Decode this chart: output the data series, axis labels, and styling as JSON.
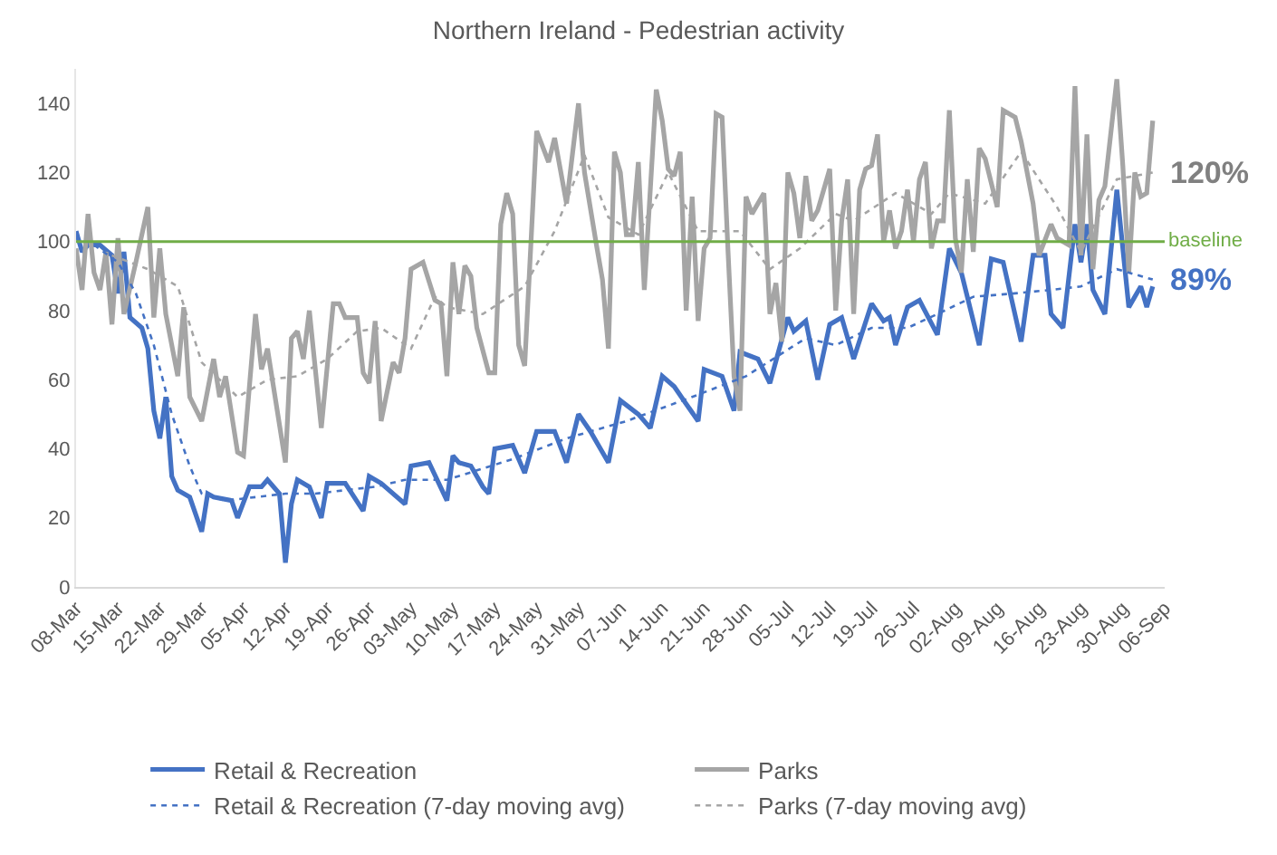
{
  "chart_data": {
    "type": "line",
    "title": "Northern Ireland - Pedestrian activity",
    "ylim": [
      0,
      150
    ],
    "yticks": [
      0,
      20,
      40,
      60,
      80,
      100,
      120,
      140
    ],
    "xlim": [
      "--03-08",
      "--09-06"
    ],
    "xticks": [
      {
        "value": "--03-08",
        "label": "08-Mar"
      },
      {
        "value": "--03-15",
        "label": "15-Mar"
      },
      {
        "value": "--03-22",
        "label": "22-Mar"
      },
      {
        "value": "--03-29",
        "label": "29-Mar"
      },
      {
        "value": "--04-05",
        "label": "05-Apr"
      },
      {
        "value": "--04-12",
        "label": "12-Apr"
      },
      {
        "value": "--04-19",
        "label": "19-Apr"
      },
      {
        "value": "--04-26",
        "label": "26-Apr"
      },
      {
        "value": "--05-03",
        "label": "03-May"
      },
      {
        "value": "--05-10",
        "label": "10-May"
      },
      {
        "value": "--05-17",
        "label": "17-May"
      },
      {
        "value": "--05-24",
        "label": "24-May"
      },
      {
        "value": "--05-31",
        "label": "31-May"
      },
      {
        "value": "--06-07",
        "label": "07-Jun"
      },
      {
        "value": "--06-14",
        "label": "14-Jun"
      },
      {
        "value": "--06-21",
        "label": "21-Jun"
      },
      {
        "value": "--06-28",
        "label": "28-Jun"
      },
      {
        "value": "--07-05",
        "label": "05-Jul"
      },
      {
        "value": "--07-12",
        "label": "12-Jul"
      },
      {
        "value": "--07-19",
        "label": "19-Jul"
      },
      {
        "value": "--07-26",
        "label": "26-Jul"
      },
      {
        "value": "--08-02",
        "label": "02-Aug"
      },
      {
        "value": "--08-09",
        "label": "09-Aug"
      },
      {
        "value": "--08-16",
        "label": "16-Aug"
      },
      {
        "value": "--08-23",
        "label": "23-Aug"
      },
      {
        "value": "--08-30",
        "label": "30-Aug"
      },
      {
        "value": "--09-06",
        "label": "06-Sep"
      }
    ],
    "legend": "bottom",
    "ref_lines": [
      {
        "axis": "y",
        "value": 100,
        "label": "baseline",
        "color": "#70ad47"
      }
    ],
    "annotations": [
      {
        "text": "120%",
        "x": "--09-04",
        "y": 120
      },
      {
        "text": "89%",
        "x": "--09-04",
        "y": 89
      }
    ],
    "series": [
      {
        "name": "Retail & Recreation",
        "color": "#4472c4",
        "line_style": "solid",
        "x": [
          "--03-08",
          "--03-09",
          "--03-10",
          "--03-12",
          "--03-14",
          "--03-15",
          "--03-16",
          "--03-17",
          "--03-19",
          "--03-20",
          "--03-21",
          "--03-22",
          "--03-23",
          "--03-24",
          "--03-25",
          "--03-27",
          "--03-29",
          "--03-30",
          "--03-31",
          "--04-03",
          "--04-04",
          "--04-06",
          "--04-08",
          "--04-09",
          "--04-11",
          "--04-12",
          "--04-13",
          "--04-14",
          "--04-16",
          "--04-18",
          "--04-19",
          "--04-22",
          "--04-25",
          "--04-26",
          "--04-28",
          "--05-02",
          "--05-03",
          "--05-06",
          "--05-09",
          "--05-10",
          "--05-11",
          "--05-13",
          "--05-15",
          "--05-16",
          "--05-17",
          "--05-20",
          "--05-22",
          "--05-24",
          "--05-27",
          "--05-29",
          "--05-31",
          "--06-02",
          "--06-05",
          "--06-07",
          "--06-10",
          "--06-12",
          "--06-14",
          "--06-16",
          "--06-18",
          "--06-20",
          "--06-21",
          "--06-24",
          "--06-26",
          "--06-27",
          "--06-30",
          "--07-02",
          "--07-05",
          "--07-06",
          "--07-08",
          "--07-10",
          "--07-12",
          "--07-14",
          "--07-16",
          "--07-19",
          "--07-21",
          "--07-22",
          "--07-23",
          "--07-25",
          "--07-27",
          "--07-30",
          "--08-01",
          "--08-03",
          "--08-06",
          "--08-08",
          "--08-10",
          "--08-13",
          "--08-15",
          "--08-17",
          "--08-18",
          "--08-20",
          "--08-22",
          "--08-23",
          "--08-24",
          "--08-25",
          "--08-27",
          "--08-29",
          "--08-31",
          "--09-02",
          "--09-03",
          "--09-04"
        ],
        "values": [
          103,
          97,
          99,
          99,
          96,
          85,
          97,
          78,
          75,
          69,
          51,
          43,
          55,
          32,
          28,
          26,
          16,
          27,
          26,
          25,
          20,
          29,
          29,
          31,
          27,
          7,
          24,
          31,
          29,
          20,
          30,
          30,
          22,
          32,
          30,
          24,
          35,
          36,
          25,
          38,
          36,
          35,
          29,
          27,
          40,
          41,
          33,
          45,
          45,
          36,
          50,
          45,
          36,
          54,
          50,
          46,
          61,
          58,
          53,
          48,
          63,
          61,
          51,
          68,
          66,
          59,
          78,
          74,
          77,
          60,
          76,
          78,
          66,
          82,
          77,
          78,
          70,
          81,
          83,
          73,
          98,
          91,
          70,
          95,
          94,
          71,
          96,
          96,
          79,
          75,
          105,
          94,
          105,
          86,
          79,
          115,
          81,
          87,
          81,
          87
        ]
      },
      {
        "name": "Parks",
        "color": "#a5a5a5",
        "line_style": "solid",
        "x": [
          "--03-08",
          "--03-09",
          "--03-10",
          "--03-11",
          "--03-12",
          "--03-13",
          "--03-14",
          "--03-15",
          "--03-16",
          "--03-18",
          "--03-20",
          "--03-21",
          "--03-22",
          "--03-23",
          "--03-25",
          "--03-26",
          "--03-27",
          "--03-29",
          "--03-31",
          "--04-01",
          "--04-02",
          "--04-04",
          "--04-05",
          "--04-07",
          "--04-08",
          "--04-09",
          "--04-10",
          "--04-12",
          "--04-13",
          "--04-14",
          "--04-15",
          "--04-16",
          "--04-18",
          "--04-20",
          "--04-21",
          "--04-22",
          "--04-24",
          "--04-25",
          "--04-26",
          "--04-27",
          "--04-28",
          "--04-30",
          "--05-01",
          "--05-02",
          "--05-03",
          "--05-05",
          "--05-07",
          "--05-08",
          "--05-09",
          "--05-10",
          "--05-11",
          "--05-12",
          "--05-13",
          "--05-14",
          "--05-16",
          "--05-17",
          "--05-18",
          "--05-19",
          "--05-20",
          "--05-21",
          "--05-22",
          "--05-24",
          "--05-26",
          "--05-27",
          "--05-29",
          "--05-31",
          "--06-01",
          "--06-03",
          "--06-04",
          "--06-05",
          "--06-06",
          "--06-07",
          "--06-08",
          "--06-09",
          "--06-10",
          "--06-11",
          "--06-13",
          "--06-14",
          "--06-15",
          "--06-16",
          "--06-17",
          "--06-18",
          "--06-19",
          "--06-20",
          "--06-21",
          "--06-22",
          "--06-23",
          "--06-24",
          "--06-25",
          "--06-26",
          "--06-27",
          "--06-28",
          "--06-29",
          "--07-01",
          "--07-02",
          "--07-03",
          "--07-04",
          "--07-05",
          "--07-06",
          "--07-07",
          "--07-08",
          "--07-09",
          "--07-10",
          "--07-12",
          "--07-13",
          "--07-14",
          "--07-15",
          "--07-16",
          "--07-17",
          "--07-18",
          "--07-19",
          "--07-20",
          "--07-21",
          "--07-22",
          "--07-23",
          "--07-24",
          "--07-25",
          "--07-26",
          "--07-27",
          "--07-28",
          "--07-29",
          "--07-30",
          "--07-31",
          "--08-01",
          "--08-02",
          "--08-03",
          "--08-04",
          "--08-05",
          "--08-06",
          "--08-07",
          "--08-09",
          "--08-10",
          "--08-12",
          "--08-13",
          "--08-15",
          "--08-16",
          "--08-18",
          "--08-19",
          "--08-21",
          "--08-22",
          "--08-23",
          "--08-24",
          "--08-25",
          "--08-26",
          "--08-27",
          "--08-29",
          "--08-30",
          "--08-31",
          "--09-01",
          "--09-02",
          "--09-03",
          "--09-04"
        ],
        "values": [
          98,
          86,
          108,
          91,
          86,
          97,
          76,
          101,
          79,
          94,
          110,
          78,
          98,
          79,
          61,
          81,
          55,
          48,
          66,
          55,
          61,
          39,
          38,
          79,
          63,
          69,
          58,
          36,
          72,
          74,
          66,
          80,
          46,
          82,
          82,
          78,
          78,
          62,
          59,
          77,
          48,
          65,
          62,
          72,
          92,
          94,
          83,
          82,
          61,
          94,
          79,
          93,
          90,
          75,
          62,
          62,
          105,
          114,
          108,
          70,
          64,
          132,
          123,
          130,
          111,
          140,
          120,
          99,
          89,
          69,
          126,
          120,
          102,
          102,
          123,
          86,
          144,
          135,
          121,
          119,
          126,
          80,
          113,
          77,
          98,
          101,
          137,
          136,
          97,
          61,
          51,
          113,
          108,
          114,
          79,
          88,
          71,
          120,
          114,
          101,
          119,
          106,
          109,
          121,
          80,
          106,
          118,
          79,
          115,
          121,
          122,
          131,
          100,
          109,
          98,
          103,
          115,
          100,
          118,
          123,
          98,
          106,
          106,
          138,
          101,
          91,
          118,
          97,
          127,
          124,
          110,
          138,
          136,
          129,
          111,
          96,
          105,
          101,
          99,
          145,
          96,
          131,
          92,
          112,
          116,
          147,
          122,
          91,
          120,
          113,
          114,
          135
        ]
      },
      {
        "name": "Retail & Recreation (7-day moving avg)",
        "color": "#4472c4",
        "line_style": "dotted",
        "x": [
          "--03-11",
          "--03-15",
          "--03-18",
          "--03-21",
          "--03-24",
          "--03-27",
          "--03-29",
          "--04-02",
          "--04-07",
          "--04-12",
          "--04-17",
          "--04-22",
          "--04-27",
          "--05-02",
          "--05-09",
          "--05-20",
          "--05-29",
          "--06-08",
          "--06-19",
          "--06-28",
          "--07-08",
          "--07-13",
          "--07-19",
          "--07-25",
          "--07-30",
          "--08-05",
          "--08-12",
          "--08-18",
          "--08-23",
          "--08-29",
          "--09-04"
        ],
        "values": [
          99,
          94,
          85,
          70,
          50,
          35,
          27,
          25,
          26,
          27,
          27,
          28,
          29,
          31,
          31,
          37,
          43,
          48,
          55,
          61,
          72,
          70,
          75,
          75,
          79,
          84,
          85,
          86,
          87,
          92,
          89
        ]
      },
      {
        "name": "Parks (7-day moving avg)",
        "color": "#a5a5a5",
        "line_style": "dotted",
        "x": [
          "--03-14",
          "--03-20",
          "--03-25",
          "--03-29",
          "--04-04",
          "--04-09",
          "--04-14",
          "--04-19",
          "--04-24",
          "--04-28",
          "--05-03",
          "--05-07",
          "--05-09",
          "--05-15",
          "--05-22",
          "--05-27",
          "--06-01",
          "--06-05",
          "--06-10",
          "--06-15",
          "--06-20",
          "--06-27",
          "--07-02",
          "--07-07",
          "--07-13",
          "--07-16",
          "--07-23",
          "--07-29",
          "--08-01",
          "--08-07",
          "--08-13",
          "--08-19",
          "--08-23",
          "--08-29",
          "--09-04"
        ],
        "values": [
          96,
          92,
          87,
          65,
          55,
          60,
          61,
          66,
          74,
          75,
          69,
          84,
          81,
          79,
          87,
          103,
          125,
          107,
          102,
          120,
          103,
          103,
          92,
          98,
          108,
          106,
          114,
          108,
          114,
          111,
          126,
          110,
          97,
          118,
          120
        ]
      }
    ]
  }
}
